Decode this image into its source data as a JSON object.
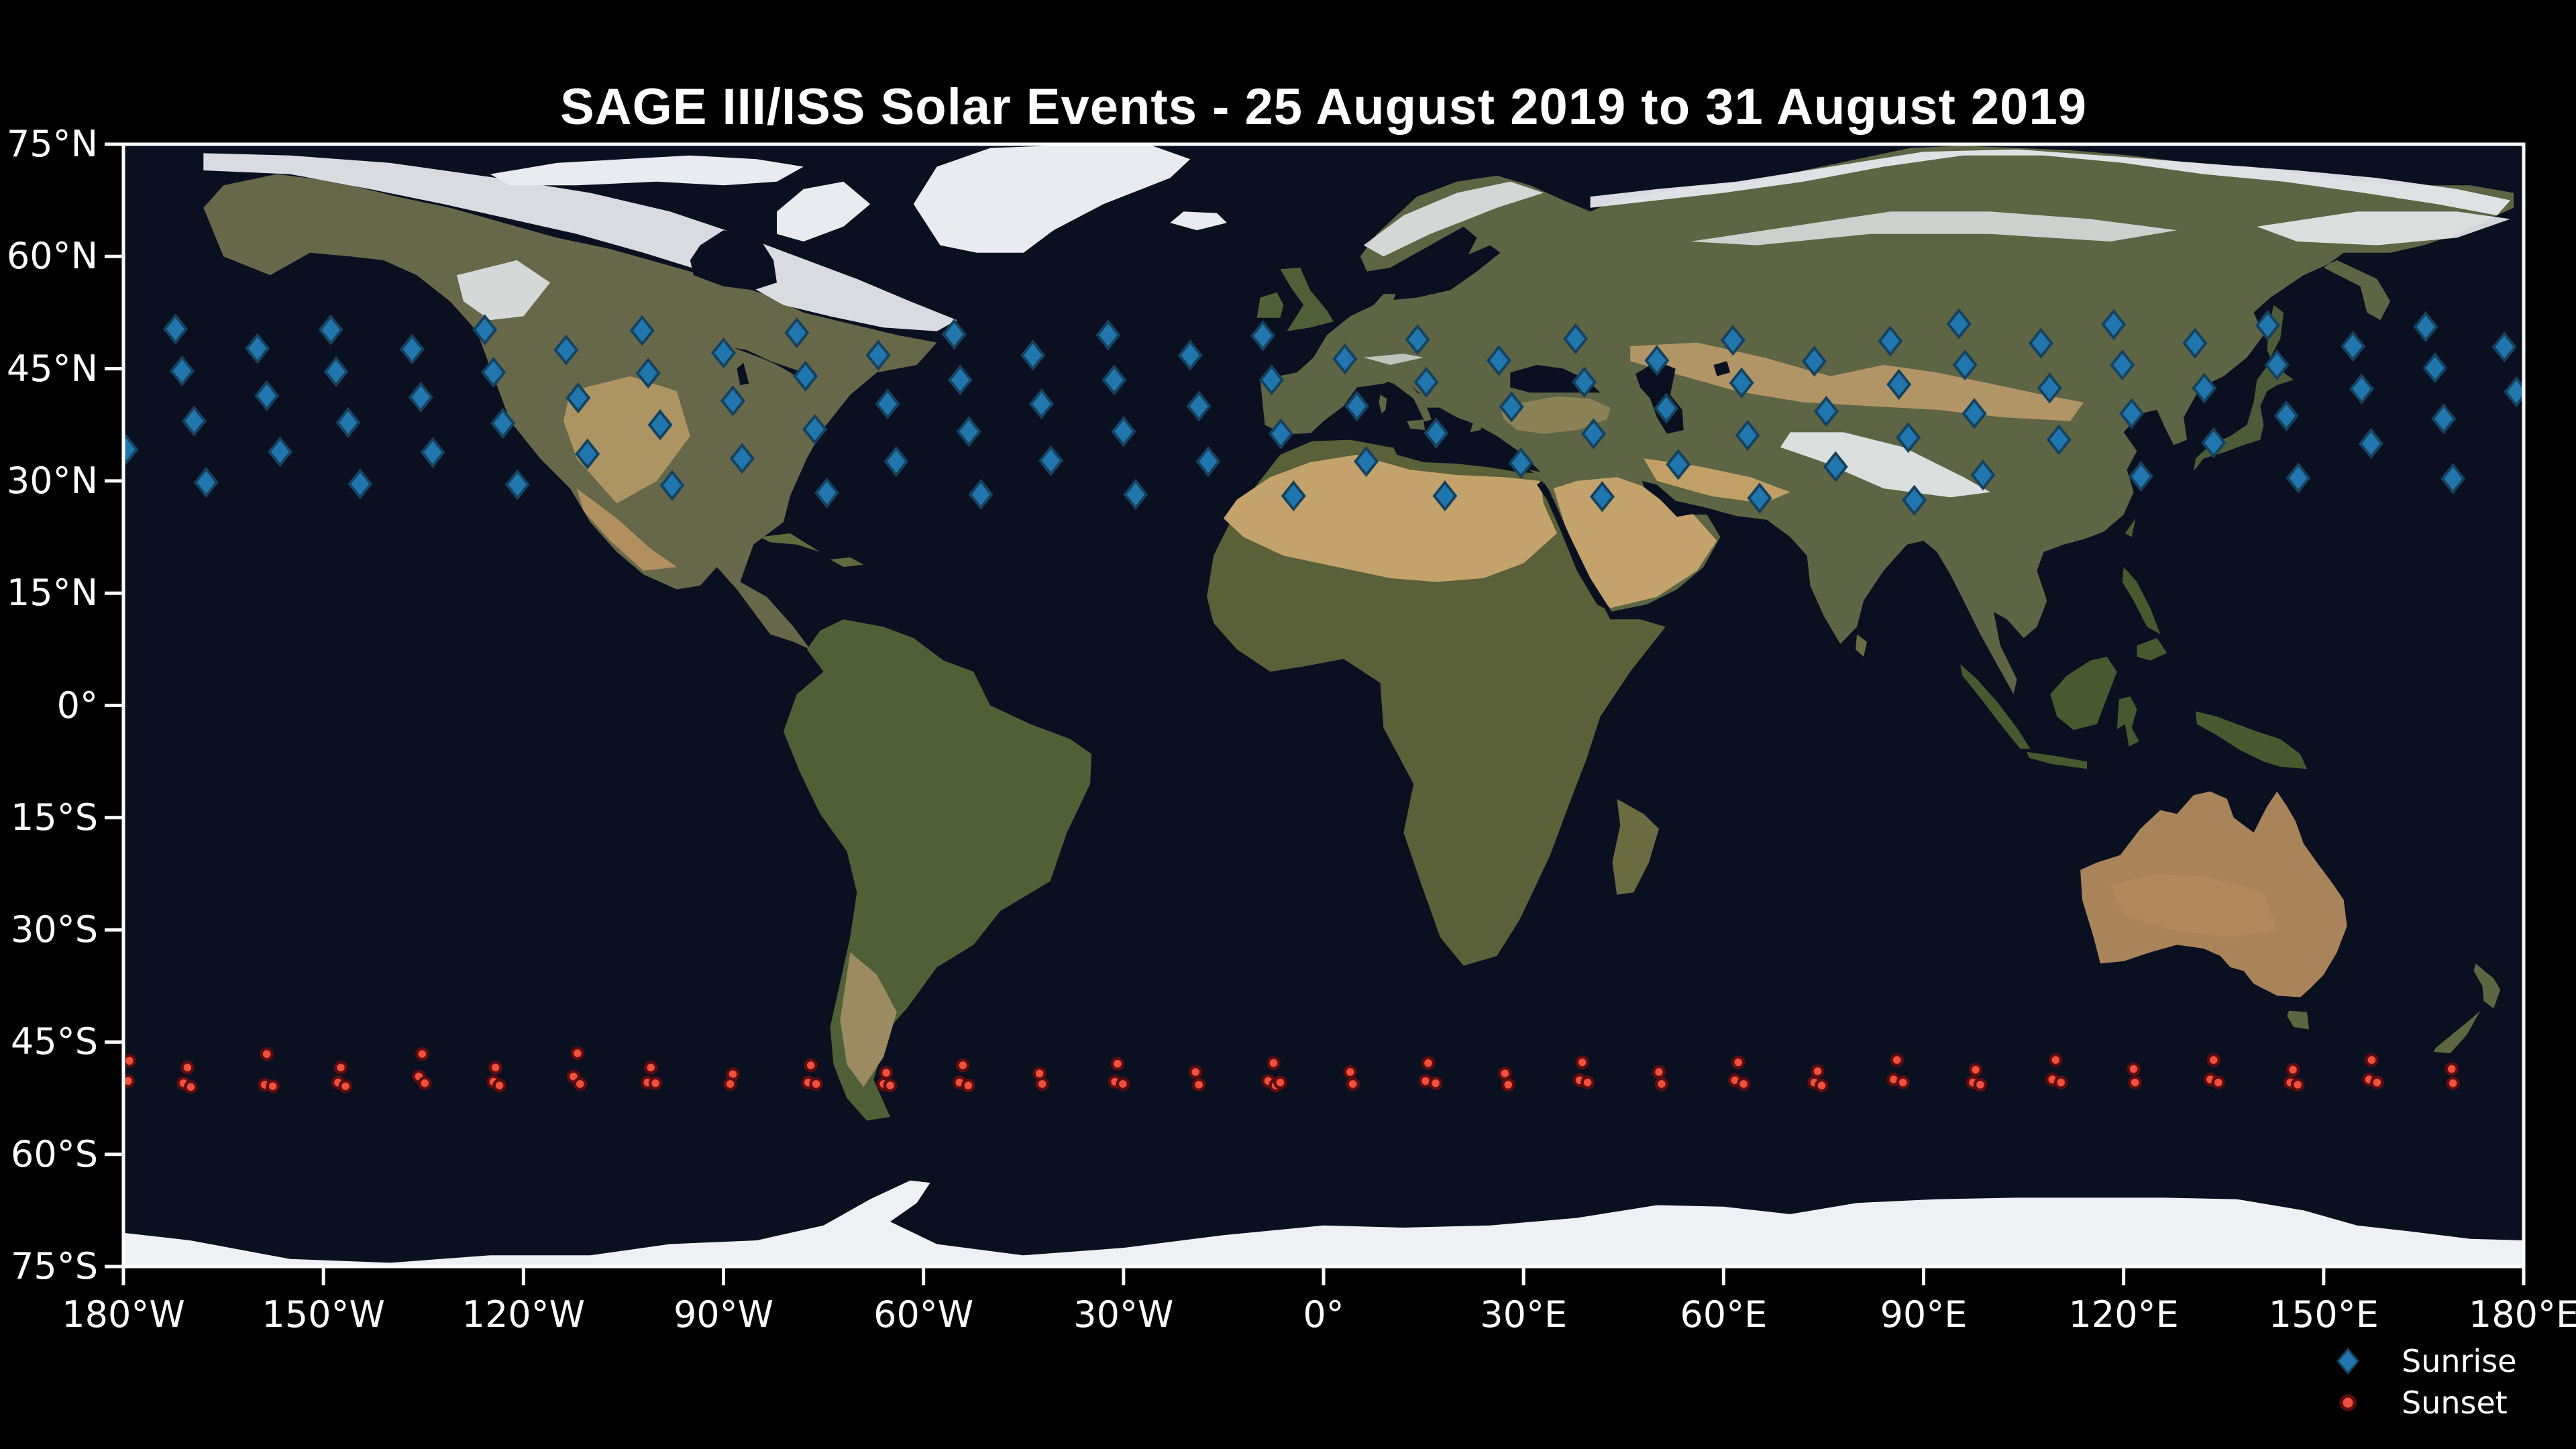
{
  "title": "SAGE III/ISS Solar Events - 25 August 2019 to 31 August 2019",
  "colors": {
    "background": "#000000",
    "ocean": "#0a1020",
    "spine": "#ffffff",
    "tick_label": "#ffffff",
    "sunrise_fill": "#2176ad",
    "sunrise_edge": "#16425f",
    "sunset_fill": "#f1503d",
    "sunset_edge": "#5c0d10"
  },
  "axes": {
    "lat_tick_labels": [
      "75°N",
      "60°N",
      "45°N",
      "30°N",
      "15°N",
      "0°",
      "15°S",
      "30°S",
      "45°S",
      "60°S",
      "75°S"
    ],
    "lat_tick_values": [
      75,
      60,
      45,
      30,
      15,
      0,
      -15,
      -30,
      -45,
      -60,
      -75
    ],
    "lon_tick_labels": [
      "180°W",
      "150°W",
      "120°W",
      "90°W",
      "60°W",
      "30°W",
      "0°",
      "30°E",
      "60°E",
      "90°E",
      "120°E",
      "150°E",
      "180°E"
    ],
    "lon_tick_values": [
      -180,
      -150,
      -120,
      -90,
      -60,
      -30,
      0,
      30,
      60,
      90,
      120,
      150,
      180
    ],
    "lat_range": [
      -75,
      75
    ],
    "lon_range": [
      -180,
      180
    ],
    "grid": false
  },
  "legend": {
    "position": "lower-right",
    "items": [
      {
        "label": "Sunrise",
        "marker": "diamond-icon",
        "color": "#2176ad"
      },
      {
        "label": "Sunset",
        "marker": "circle-icon",
        "color": "#f1503d"
      }
    ]
  },
  "chart_data": {
    "type": "scatter",
    "title": "SAGE III/ISS Solar Events - 25 August 2019 to 31 August 2019",
    "xlabel": "",
    "ylabel": "",
    "xlim": [
      -180,
      180
    ],
    "ylim": [
      -75,
      75
    ],
    "basemap": "satellite world map (equirectangular)",
    "series": [
      {
        "name": "Sunrise",
        "marker": "diamond",
        "color": "#2176ad",
        "points_lon_lat": [
          [
            95.3,
            51.0
          ],
          [
            118.5,
            50.9
          ],
          [
            141.6,
            50.8
          ],
          [
            165.3,
            50.6
          ],
          [
            -172.2,
            50.3
          ],
          [
            -148.9,
            50.2
          ],
          [
            -125.8,
            50.2
          ],
          [
            -102.2,
            50.1
          ],
          [
            -79.0,
            49.8
          ],
          [
            -55.4,
            49.6
          ],
          [
            -32.3,
            49.5
          ],
          [
            -9.1,
            49.4
          ],
          [
            14.1,
            48.9
          ],
          [
            37.8,
            49.0
          ],
          [
            61.4,
            48.8
          ],
          [
            85.0,
            48.7
          ],
          [
            107.6,
            48.4
          ],
          [
            130.7,
            48.4
          ],
          [
            154.4,
            48.0
          ],
          [
            177.1,
            47.9
          ],
          [
            -159.9,
            47.7
          ],
          [
            -136.7,
            47.6
          ],
          [
            -113.6,
            47.5
          ],
          [
            -90.0,
            47.1
          ],
          [
            -66.8,
            46.8
          ],
          [
            -43.6,
            46.8
          ],
          [
            -20.0,
            46.8
          ],
          [
            3.2,
            46.3
          ],
          [
            26.3,
            46.1
          ],
          [
            50.0,
            46.1
          ],
          [
            73.6,
            46.0
          ],
          [
            96.2,
            45.5
          ],
          [
            119.8,
            45.5
          ],
          [
            143.0,
            45.5
          ],
          [
            166.7,
            45.1
          ],
          [
            -171.2,
            44.7
          ],
          [
            -148.1,
            44.6
          ],
          [
            -124.5,
            44.5
          ],
          [
            -101.3,
            44.4
          ],
          [
            -77.7,
            44.0
          ],
          [
            -54.5,
            43.5
          ],
          [
            -31.4,
            43.5
          ],
          [
            -7.8,
            43.5
          ],
          [
            15.4,
            43.2
          ],
          [
            39.1,
            43.2
          ],
          [
            62.7,
            43.1
          ],
          [
            86.3,
            42.9
          ],
          [
            108.9,
            42.4
          ],
          [
            132.1,
            42.4
          ],
          [
            155.7,
            42.3
          ],
          [
            178.9,
            41.9
          ],
          [
            -158.5,
            41.4
          ],
          [
            -135.4,
            41.2
          ],
          [
            -111.8,
            41.1
          ],
          [
            -88.6,
            40.7
          ],
          [
            -65.4,
            40.3
          ],
          [
            -42.3,
            40.3
          ],
          [
            -18.7,
            40.0
          ],
          [
            5.0,
            40.0
          ],
          [
            28.2,
            39.9
          ],
          [
            51.4,
            39.7
          ],
          [
            75.4,
            39.3
          ],
          [
            97.6,
            39.0
          ],
          [
            121.2,
            39.0
          ],
          [
            144.4,
            38.7
          ],
          [
            168.0,
            38.3
          ],
          [
            -169.4,
            38.0
          ],
          [
            -146.3,
            37.8
          ],
          [
            -123.1,
            37.7
          ],
          [
            -99.5,
            37.5
          ],
          [
            -76.3,
            36.9
          ],
          [
            -53.2,
            36.6
          ],
          [
            -30.0,
            36.6
          ],
          [
            -6.4,
            36.3
          ],
          [
            16.9,
            36.4
          ],
          [
            40.5,
            36.3
          ],
          [
            63.6,
            36.1
          ],
          [
            87.7,
            35.8
          ],
          [
            110.3,
            35.5
          ],
          [
            133.5,
            35.1
          ],
          [
            157.1,
            35.0
          ],
          [
            -179.6,
            34.2
          ],
          [
            -156.5,
            33.9
          ],
          [
            -133.6,
            33.8
          ],
          [
            -110.4,
            33.6
          ],
          [
            -87.2,
            33.0
          ],
          [
            -64.1,
            32.6
          ],
          [
            -40.9,
            32.7
          ],
          [
            -17.3,
            32.6
          ],
          [
            6.4,
            32.6
          ],
          [
            29.6,
            32.4
          ],
          [
            53.2,
            32.2
          ],
          [
            76.8,
            31.9
          ],
          [
            98.9,
            30.8
          ],
          [
            122.6,
            30.6
          ],
          [
            146.2,
            30.4
          ],
          [
            169.4,
            30.3
          ],
          [
            -167.6,
            29.8
          ],
          [
            -144.5,
            29.6
          ],
          [
            -120.9,
            29.5
          ],
          [
            -97.7,
            29.4
          ],
          [
            -74.5,
            28.4
          ],
          [
            -51.4,
            28.2
          ],
          [
            -28.2,
            28.2
          ],
          [
            -4.5,
            28.0
          ],
          [
            18.2,
            28.0
          ],
          [
            41.8,
            27.9
          ],
          [
            65.4,
            27.7
          ],
          [
            88.6,
            27.4
          ]
        ]
      },
      {
        "name": "Sunset",
        "marker": "circle",
        "color": "#f1503d",
        "points_lon_lat": [
          [
            -170.4,
            -48.4
          ],
          [
            -171.0,
            -50.5
          ],
          [
            -169.9,
            -51.0
          ],
          [
            -158.5,
            -46.6
          ],
          [
            -158.8,
            -50.7
          ],
          [
            -157.6,
            -50.9
          ],
          [
            -147.4,
            -48.4
          ],
          [
            -147.8,
            -50.4
          ],
          [
            -146.7,
            -50.9
          ],
          [
            -135.2,
            -46.6
          ],
          [
            -135.7,
            -49.6
          ],
          [
            -134.8,
            -50.5
          ],
          [
            -124.2,
            -48.4
          ],
          [
            -124.5,
            -50.3
          ],
          [
            -123.6,
            -50.8
          ],
          [
            -111.9,
            -46.5
          ],
          [
            -112.5,
            -49.6
          ],
          [
            -111.5,
            -50.6
          ],
          [
            -100.9,
            -48.4
          ],
          [
            -101.4,
            -50.4
          ],
          [
            -100.2,
            -50.5
          ],
          [
            -88.6,
            -49.3
          ],
          [
            -89.0,
            -50.6
          ],
          [
            -76.9,
            -48.1
          ],
          [
            -77.3,
            -50.4
          ],
          [
            -76.1,
            -50.6
          ],
          [
            -65.6,
            -49.1
          ],
          [
            -66.0,
            -50.6
          ],
          [
            -65.0,
            -50.8
          ],
          [
            -54.1,
            -48.1
          ],
          [
            -54.6,
            -50.4
          ],
          [
            -53.3,
            -50.8
          ],
          [
            -42.6,
            -49.2
          ],
          [
            -42.2,
            -50.6
          ],
          [
            -30.9,
            -47.9
          ],
          [
            -31.3,
            -50.3
          ],
          [
            -30.1,
            -50.6
          ],
          [
            -19.2,
            -49.0
          ],
          [
            -18.7,
            -50.7
          ],
          [
            -7.5,
            -47.8
          ],
          [
            -8.3,
            -50.2
          ],
          [
            -7.2,
            -50.8
          ],
          [
            -6.5,
            -50.4
          ],
          [
            4.0,
            -49.0
          ],
          [
            4.4,
            -50.6
          ],
          [
            15.7,
            -47.8
          ],
          [
            15.3,
            -50.2
          ],
          [
            16.8,
            -50.5
          ],
          [
            27.2,
            -49.2
          ],
          [
            27.7,
            -50.7
          ],
          [
            38.8,
            -47.7
          ],
          [
            38.4,
            -50.1
          ],
          [
            39.6,
            -50.4
          ],
          [
            50.3,
            -49.0
          ],
          [
            50.7,
            -50.6
          ],
          [
            62.2,
            -47.7
          ],
          [
            61.7,
            -50.1
          ],
          [
            63.0,
            -50.6
          ],
          [
            74.1,
            -48.9
          ],
          [
            73.6,
            -50.4
          ],
          [
            74.7,
            -50.8
          ],
          [
            86.0,
            -47.4
          ],
          [
            85.5,
            -50.0
          ],
          [
            86.9,
            -50.4
          ],
          [
            97.8,
            -48.7
          ],
          [
            97.4,
            -50.4
          ],
          [
            98.5,
            -50.7
          ],
          [
            109.8,
            -47.4
          ],
          [
            109.3,
            -50.0
          ],
          [
            110.6,
            -50.4
          ],
          [
            121.5,
            -48.6
          ],
          [
            121.7,
            -50.4
          ],
          [
            133.5,
            -47.4
          ],
          [
            133.0,
            -50.0
          ],
          [
            134.2,
            -50.4
          ],
          [
            145.4,
            -48.7
          ],
          [
            145.0,
            -50.4
          ],
          [
            146.1,
            -50.7
          ],
          [
            157.2,
            -47.4
          ],
          [
            156.8,
            -50.0
          ],
          [
            158.0,
            -50.4
          ],
          [
            169.2,
            -48.6
          ],
          [
            169.4,
            -50.5
          ],
          [
            -179.1,
            -47.5
          ],
          [
            -179.3,
            -50.2
          ]
        ]
      }
    ]
  }
}
